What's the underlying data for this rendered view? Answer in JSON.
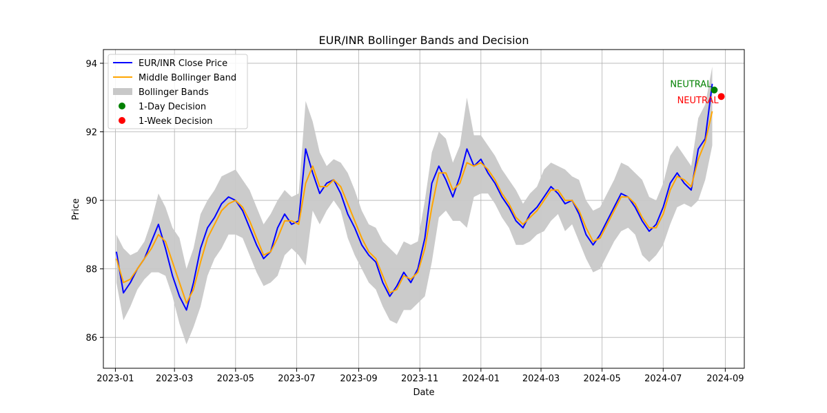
{
  "chart_data": {
    "type": "line",
    "title": "EUR/INR Bollinger Bands and Decision",
    "xlabel": "Date",
    "ylabel": "Price",
    "x_range": [
      "2022-12-20",
      "2024-09-20"
    ],
    "ylim": [
      85.1,
      94.4
    ],
    "grid": true,
    "legend_position": "top-left",
    "x_ticks": [
      "2023-01",
      "2023-03",
      "2023-05",
      "2023-07",
      "2023-09",
      "2023-11",
      "2024-01",
      "2024-03",
      "2024-05",
      "2024-07",
      "2024-09"
    ],
    "y_ticks": [
      86,
      88,
      90,
      92,
      94
    ],
    "colors": {
      "close": "#0000ff",
      "middle": "#ffa500",
      "bands": "#c8c8c8",
      "day_decision": "#008000",
      "week_decision": "#ff0000"
    },
    "legend": [
      {
        "key": "close",
        "label": "EUR/INR Close Price",
        "kind": "line"
      },
      {
        "key": "middle",
        "label": "Middle Bollinger Band",
        "kind": "line"
      },
      {
        "key": "bands",
        "label": "Bollinger Bands",
        "kind": "patch"
      },
      {
        "key": "day_decision",
        "label": "1-Day Decision",
        "kind": "dot"
      },
      {
        "key": "week_decision",
        "label": "1-Week Decision",
        "kind": "dot"
      }
    ],
    "series": {
      "dates": [
        "2023-01-02",
        "2023-01-09",
        "2023-01-16",
        "2023-01-23",
        "2023-01-30",
        "2023-02-06",
        "2023-02-13",
        "2023-02-20",
        "2023-02-27",
        "2023-03-06",
        "2023-03-13",
        "2023-03-20",
        "2023-03-27",
        "2023-04-03",
        "2023-04-10",
        "2023-04-17",
        "2023-04-24",
        "2023-05-01",
        "2023-05-08",
        "2023-05-15",
        "2023-05-22",
        "2023-05-29",
        "2023-06-05",
        "2023-06-12",
        "2023-06-19",
        "2023-06-26",
        "2023-07-03",
        "2023-07-10",
        "2023-07-17",
        "2023-07-24",
        "2023-07-31",
        "2023-08-07",
        "2023-08-14",
        "2023-08-21",
        "2023-08-28",
        "2023-09-04",
        "2023-09-11",
        "2023-09-18",
        "2023-09-25",
        "2023-10-02",
        "2023-10-09",
        "2023-10-16",
        "2023-10-23",
        "2023-10-30",
        "2023-11-06",
        "2023-11-13",
        "2023-11-20",
        "2023-11-27",
        "2023-12-04",
        "2023-12-11",
        "2023-12-18",
        "2023-12-25",
        "2024-01-01",
        "2024-01-08",
        "2024-01-15",
        "2024-01-22",
        "2024-01-29",
        "2024-02-05",
        "2024-02-12",
        "2024-02-19",
        "2024-02-26",
        "2024-03-04",
        "2024-03-11",
        "2024-03-18",
        "2024-03-25",
        "2024-04-01",
        "2024-04-08",
        "2024-04-15",
        "2024-04-22",
        "2024-04-29",
        "2024-05-06",
        "2024-05-13",
        "2024-05-20",
        "2024-05-27",
        "2024-06-03",
        "2024-06-10",
        "2024-06-17",
        "2024-06-24",
        "2024-07-01",
        "2024-07-08",
        "2024-07-15",
        "2024-07-22",
        "2024-07-29",
        "2024-08-05",
        "2024-08-12",
        "2024-08-19"
      ],
      "close": [
        88.5,
        87.3,
        87.6,
        88.0,
        88.3,
        88.8,
        89.3,
        88.6,
        87.8,
        87.2,
        86.8,
        87.6,
        88.6,
        89.2,
        89.5,
        89.9,
        90.1,
        90.0,
        89.7,
        89.2,
        88.7,
        88.3,
        88.5,
        89.2,
        89.6,
        89.3,
        89.4,
        91.5,
        90.8,
        90.2,
        90.5,
        90.6,
        90.2,
        89.6,
        89.2,
        88.7,
        88.4,
        88.2,
        87.6,
        87.2,
        87.5,
        87.9,
        87.6,
        88.0,
        88.9,
        90.5,
        91.0,
        90.6,
        90.1,
        90.7,
        91.5,
        91.0,
        91.2,
        90.8,
        90.5,
        90.1,
        89.8,
        89.4,
        89.2,
        89.6,
        89.8,
        90.1,
        90.4,
        90.2,
        89.9,
        90.0,
        89.6,
        89.0,
        88.7,
        89.0,
        89.4,
        89.8,
        90.2,
        90.1,
        89.8,
        89.4,
        89.1,
        89.3,
        89.8,
        90.5,
        90.8,
        90.5,
        90.3,
        91.5,
        91.8,
        93.4
      ],
      "middle": [
        88.3,
        87.6,
        87.7,
        88.0,
        88.3,
        88.6,
        89.0,
        88.8,
        88.2,
        87.6,
        87.0,
        87.4,
        88.2,
        88.9,
        89.3,
        89.7,
        89.9,
        90.0,
        89.8,
        89.4,
        88.9,
        88.4,
        88.5,
        88.9,
        89.4,
        89.4,
        89.3,
        90.5,
        91.0,
        90.4,
        90.4,
        90.6,
        90.4,
        89.9,
        89.4,
        88.9,
        88.5,
        88.3,
        87.8,
        87.3,
        87.4,
        87.8,
        87.7,
        87.9,
        88.6,
        89.8,
        90.8,
        90.8,
        90.3,
        90.5,
        91.1,
        91.0,
        91.1,
        90.9,
        90.6,
        90.2,
        89.9,
        89.5,
        89.3,
        89.5,
        89.7,
        90.0,
        90.3,
        90.3,
        90.0,
        90.0,
        89.7,
        89.2,
        88.8,
        88.9,
        89.3,
        89.7,
        90.1,
        90.1,
        89.9,
        89.5,
        89.2,
        89.2,
        89.6,
        90.3,
        90.7,
        90.6,
        90.4,
        91.2,
        91.7,
        92.6
      ],
      "upper": [
        89.0,
        88.6,
        88.4,
        88.5,
        88.8,
        89.4,
        90.2,
        89.8,
        89.2,
        88.9,
        88.0,
        88.6,
        89.6,
        90.0,
        90.3,
        90.7,
        90.8,
        90.9,
        90.6,
        90.3,
        89.8,
        89.3,
        89.6,
        90.0,
        90.3,
        90.1,
        90.2,
        92.9,
        92.3,
        91.4,
        91.0,
        91.2,
        91.1,
        90.8,
        90.3,
        89.7,
        89.3,
        89.2,
        88.8,
        88.6,
        88.4,
        88.8,
        88.7,
        88.8,
        90.0,
        91.4,
        92.0,
        91.8,
        91.1,
        91.6,
        93.0,
        91.9,
        91.9,
        91.6,
        91.3,
        90.9,
        90.6,
        90.3,
        89.9,
        90.2,
        90.4,
        90.9,
        91.1,
        91.0,
        90.9,
        90.7,
        90.6,
        90.0,
        89.7,
        89.8,
        90.2,
        90.6,
        91.1,
        91.0,
        90.8,
        90.6,
        90.1,
        90.0,
        90.5,
        91.3,
        91.6,
        91.3,
        91.0,
        92.4,
        92.8,
        93.9
      ],
      "lower": [
        87.6,
        86.5,
        86.9,
        87.4,
        87.7,
        87.9,
        87.9,
        87.8,
        87.2,
        86.4,
        85.8,
        86.3,
        86.9,
        87.8,
        88.3,
        88.6,
        89.0,
        89.0,
        88.9,
        88.4,
        87.9,
        87.5,
        87.6,
        87.8,
        88.4,
        88.6,
        88.4,
        88.1,
        89.7,
        89.3,
        89.7,
        90.0,
        89.7,
        88.9,
        88.4,
        88.0,
        87.6,
        87.4,
        86.9,
        86.5,
        86.4,
        86.8,
        86.8,
        87.0,
        87.2,
        88.2,
        89.5,
        89.7,
        89.4,
        89.4,
        89.2,
        90.1,
        90.2,
        90.2,
        89.9,
        89.5,
        89.2,
        88.7,
        88.7,
        88.8,
        89.0,
        89.1,
        89.4,
        89.6,
        89.1,
        89.3,
        88.8,
        88.3,
        87.9,
        88.0,
        88.4,
        88.8,
        89.1,
        89.2,
        89.0,
        88.4,
        88.2,
        88.4,
        88.7,
        89.3,
        89.8,
        89.9,
        89.8,
        90.0,
        90.6,
        91.6
      ]
    },
    "decisions": [
      {
        "key": "day_decision",
        "date": "2024-08-21",
        "value": 93.22,
        "label": "NEUTRAL"
      },
      {
        "key": "week_decision",
        "date": "2024-08-28",
        "value": 93.03,
        "label": "NEUTRAL"
      }
    ]
  }
}
